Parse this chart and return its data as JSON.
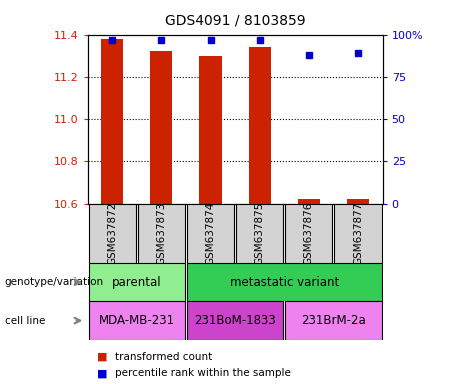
{
  "title": "GDS4091 / 8103859",
  "samples": [
    "GSM637872",
    "GSM637873",
    "GSM637874",
    "GSM637875",
    "GSM637876",
    "GSM637877"
  ],
  "transformed_counts": [
    11.38,
    11.32,
    11.3,
    11.34,
    10.62,
    10.62
  ],
  "percentile_ranks": [
    97,
    97,
    97,
    97,
    88,
    89
  ],
  "ylim_left": [
    10.6,
    11.4
  ],
  "ylim_right": [
    0,
    100
  ],
  "yticks_left": [
    10.6,
    10.8,
    11.0,
    11.2,
    11.4
  ],
  "yticks_right": [
    0,
    25,
    50,
    75,
    100
  ],
  "yticklabels_right": [
    "0",
    "25",
    "50",
    "75",
    "100%"
  ],
  "bar_bottom": 10.6,
  "bar_color": "#cc2200",
  "dot_color": "#0000cc",
  "genotype_groups": [
    {
      "label": "parental",
      "cols": [
        0,
        1
      ],
      "color": "#90ee90"
    },
    {
      "label": "metastatic variant",
      "cols": [
        2,
        3,
        4,
        5
      ],
      "color": "#33cc55"
    }
  ],
  "cell_line_groups": [
    {
      "label": "MDA-MB-231",
      "cols": [
        0,
        1
      ],
      "color": "#ee82ee"
    },
    {
      "label": "231BoM-1833",
      "cols": [
        2,
        3
      ],
      "color": "#cc44cc"
    },
    {
      "label": "231BrM-2a",
      "cols": [
        4,
        5
      ],
      "color": "#ee82ee"
    }
  ],
  "legend_items": [
    {
      "color": "#cc2200",
      "label": "transformed count"
    },
    {
      "color": "#0000cc",
      "label": "percentile rank within the sample"
    }
  ],
  "left_color": "#cc2200",
  "right_color": "#0000cc",
  "sample_box_color": "#d3d3d3",
  "bar_width": 0.45
}
